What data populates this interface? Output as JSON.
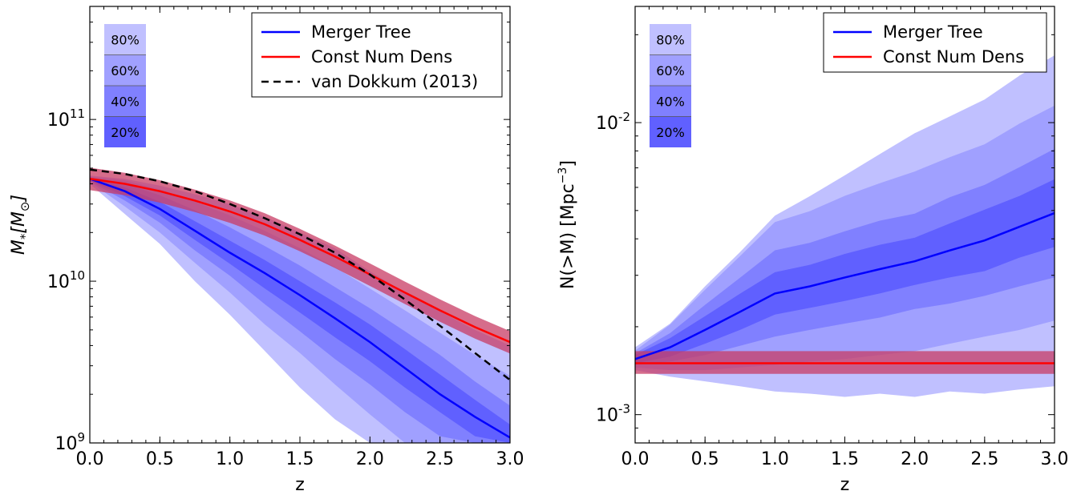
{
  "chart_data": [
    {
      "type": "area",
      "xlabel": "z",
      "ylabel_main": "M",
      "ylabel_sub": "*",
      "ylabel_bracket": "[M",
      "ylabel_sun": "⊙",
      "ylabel_close": "]",
      "xlim": [
        0.0,
        3.0
      ],
      "ylim": [
        1000000000.0,
        500000000000.0
      ],
      "yscale": "log",
      "xticks": [
        "0.0",
        "0.5",
        "1.0",
        "1.5",
        "2.0",
        "2.5",
        "3.0"
      ],
      "ytick_labels": [
        {
          "value": 1000000000.0,
          "base": "10",
          "exp": "9"
        },
        {
          "value": 10000000000.0,
          "base": "10",
          "exp": "10"
        },
        {
          "value": 100000000000.0,
          "base": "10",
          "exp": "11"
        }
      ],
      "legend": {
        "position": "top-right",
        "entries": [
          {
            "label": "Merger Tree",
            "color": "#0000ff",
            "style": "solid"
          },
          {
            "label": "Const Num Dens",
            "color": "#ff0000",
            "style": "solid"
          },
          {
            "label": "van Dokkum (2013)",
            "color": "#000000",
            "style": "dashed"
          }
        ]
      },
      "band_legend": [
        "80%",
        "60%",
        "40%",
        "20%"
      ],
      "x": [
        0.0,
        0.25,
        0.5,
        0.75,
        1.0,
        1.25,
        1.5,
        1.75,
        2.0,
        2.25,
        2.5,
        2.75,
        3.0
      ],
      "series": [
        {
          "name": "Merger Tree",
          "color": "#0000ff",
          "values": [
            43000000000.0,
            36000000000.0,
            28000000000.0,
            20500000000.0,
            15000000000.0,
            11200000000.0,
            8200000000.0,
            5900000000.0,
            4200000000.0,
            2900000000.0,
            2000000000.0,
            1450000000.0,
            1080000000.0
          ]
        },
        {
          "name": "Const Num Dens",
          "color": "#ff0000",
          "values": [
            43000000000.0,
            40000000000.0,
            36000000000.0,
            31500000000.0,
            27000000000.0,
            22500000000.0,
            18000000000.0,
            14200000000.0,
            11000000000.0,
            8500000000.0,
            6600000000.0,
            5200000000.0,
            4200000000.0
          ]
        },
        {
          "name": "van Dokkum (2013)",
          "color": "#000000",
          "values": [
            49000000000.0,
            46000000000.0,
            41500000000.0,
            36000000000.0,
            30000000000.0,
            24500000000.0,
            19500000000.0,
            15000000000.0,
            11000000000.0,
            7700000000.0,
            5300000000.0,
            3600000000.0,
            2450000000.0
          ]
        }
      ],
      "const_band": {
        "lower_factor": 0.85,
        "upper_factor": 1.17,
        "color": "#c83c64"
      },
      "bands": [
        {
          "label": "80%",
          "color": "#c0c0ff",
          "lower": [
            40000000000.0,
            26000000000.0,
            17000000000.0,
            10000000000.0,
            6200000000.0,
            3700000000.0,
            2200000000.0,
            1400000000.0,
            1000000000.0,
            1000000000.0,
            1000000000.0,
            1000000000.0,
            1000000000.0
          ],
          "upper": [
            45000000000.0,
            43000000000.0,
            39000000000.0,
            34500000000.0,
            30000000000.0,
            25000000000.0,
            20000000000.0,
            16000000000.0,
            11500000000.0,
            8500000000.0,
            6500000000.0,
            5000000000.0,
            4000000000.0
          ]
        },
        {
          "label": "60%",
          "color": "#a0a0ff",
          "lower": [
            41000000000.0,
            29000000000.0,
            20000000000.0,
            13000000000.0,
            8500000000.0,
            5400000000.0,
            3600000000.0,
            2300000000.0,
            1500000000.0,
            1000000000.0,
            1000000000.0,
            1000000000.0,
            1000000000.0
          ],
          "upper": [
            44500000000.0,
            42000000000.0,
            37000000000.0,
            31000000000.0,
            25500000000.0,
            20500000000.0,
            16000000000.0,
            12200000000.0,
            9000000000.0,
            6600000000.0,
            4800000000.0,
            3500000000.0,
            2600000000.0
          ]
        },
        {
          "label": "40%",
          "color": "#8080ff",
          "lower": [
            41500000000.0,
            31500000000.0,
            23000000000.0,
            15500000000.0,
            10800000000.0,
            7200000000.0,
            4900000000.0,
            3300000000.0,
            2300000000.0,
            1550000000.0,
            1100000000.0,
            1000000000.0,
            1000000000.0
          ],
          "upper": [
            44000000000.0,
            40000000000.0,
            34000000000.0,
            27500000000.0,
            21500000000.0,
            16500000000.0,
            12500000000.0,
            9200000000.0,
            6800000000.0,
            4900000000.0,
            3500000000.0,
            2400000000.0,
            1700000000.0
          ]
        },
        {
          "label": "20%",
          "color": "#6060ff",
          "lower": [
            42000000000.0,
            33500000000.0,
            25500000000.0,
            18000000000.0,
            12800000000.0,
            9000000000.0,
            6400000000.0,
            4500000000.0,
            3200000000.0,
            2200000000.0,
            1550000000.0,
            1100000000.0,
            1000000000.0
          ],
          "upper": [
            43500000000.0,
            38000000000.0,
            31000000000.0,
            23500000000.0,
            17800000000.0,
            13500000000.0,
            10000000000.0,
            7400000000.0,
            5400000000.0,
            3800000000.0,
            2650000000.0,
            1850000000.0,
            1300000000.0
          ]
        }
      ]
    },
    {
      "type": "area",
      "xlabel": "z",
      "ylabel_main": "N(>M) [Mpc",
      "ylabel_exp": "−3",
      "ylabel_close": "]",
      "xlim": [
        0.0,
        3.0
      ],
      "ylim": [
        0.0008,
        0.025
      ],
      "yscale": "log",
      "xticks": [
        "0.0",
        "0.5",
        "1.0",
        "1.5",
        "2.0",
        "2.5",
        "3.0"
      ],
      "ytick_labels": [
        {
          "value": 0.001,
          "base": "10",
          "exp": "-3"
        },
        {
          "value": 0.01,
          "base": "10",
          "exp": "-2"
        }
      ],
      "legend": {
        "position": "top-right",
        "entries": [
          {
            "label": "Merger Tree",
            "color": "#0000ff",
            "style": "solid"
          },
          {
            "label": "Const Num Dens",
            "color": "#ff0000",
            "style": "solid"
          }
        ]
      },
      "band_legend": [
        "80%",
        "60%",
        "40%",
        "20%"
      ],
      "x": [
        0.0,
        0.25,
        0.5,
        0.75,
        1.0,
        1.25,
        1.5,
        1.75,
        2.0,
        2.25,
        2.5,
        2.75,
        3.0
      ],
      "series": [
        {
          "name": "Merger Tree",
          "color": "#0000ff",
          "values": [
            0.00155,
            0.0017,
            0.00195,
            0.00225,
            0.0026,
            0.00275,
            0.00295,
            0.00315,
            0.00335,
            0.00365,
            0.00395,
            0.0044,
            0.0049
          ]
        },
        {
          "name": "Const Num Dens",
          "color": "#ff0000",
          "values": [
            0.0015,
            0.0015,
            0.0015,
            0.0015,
            0.0015,
            0.0015,
            0.0015,
            0.0015,
            0.0015,
            0.0015,
            0.0015,
            0.0015,
            0.0015
          ]
        }
      ],
      "const_band": {
        "lower_factor": 0.92,
        "upper_factor": 1.1,
        "color": "#c83c64"
      },
      "bands": [
        {
          "label": "80%",
          "color": "#c0c0ff",
          "lower": [
            0.00142,
            0.00135,
            0.0013,
            0.00125,
            0.0012,
            0.00118,
            0.00115,
            0.00118,
            0.00115,
            0.0012,
            0.00118,
            0.00122,
            0.00125
          ],
          "upper": [
            0.0017,
            0.00205,
            0.00275,
            0.0036,
            0.0048,
            0.0056,
            0.0066,
            0.0078,
            0.0092,
            0.0105,
            0.012,
            0.0145,
            0.017
          ]
        },
        {
          "label": "60%",
          "color": "#a0a0ff",
          "lower": [
            0.00145,
            0.00142,
            0.00142,
            0.00145,
            0.00148,
            0.00152,
            0.00155,
            0.0016,
            0.00165,
            0.00175,
            0.00185,
            0.00195,
            0.0021
          ]
        },
        {
          "label": "40%",
          "color": "#8080ff",
          "lower": [
            0.00148,
            0.00152,
            0.0016,
            0.00172,
            0.00185,
            0.00195,
            0.00205,
            0.00215,
            0.0023,
            0.0024,
            0.00255,
            0.00275,
            0.00295
          ]
        },
        {
          "label": "20%",
          "color": "#6060ff",
          "lower": [
            0.0015,
            0.00158,
            0.00175,
            0.00195,
            0.0022,
            0.00232,
            0.00245,
            0.0026,
            0.00278,
            0.00295,
            0.0031,
            0.00345,
            0.00375
          ]
        }
      ]
    }
  ]
}
